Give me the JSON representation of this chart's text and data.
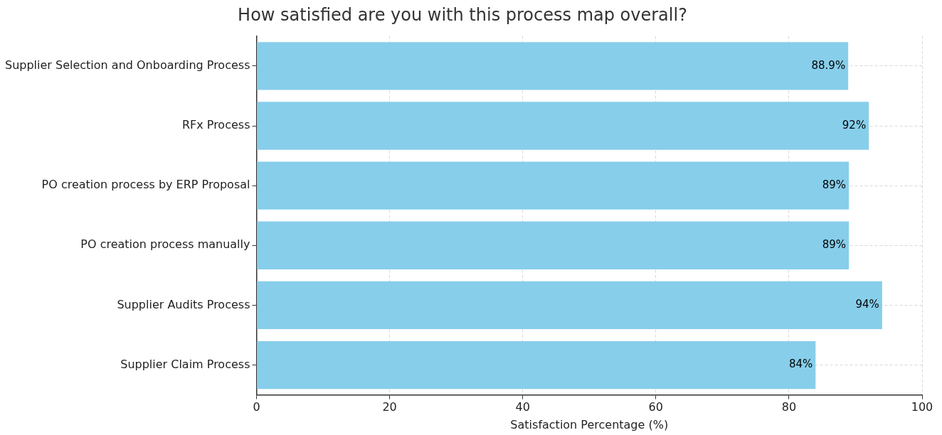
{
  "chart_data": {
    "type": "bar",
    "orientation": "horizontal",
    "title": "How satisfied are you with this process map overall?",
    "xlabel": "Satisfaction Percentage (%)",
    "categories": [
      "Supplier Selection and Onboarding Process",
      "RFx Process",
      "PO creation process by ERP Proposal",
      "PO creation process manually",
      "Supplier Audits Process",
      "Supplier Claim Process"
    ],
    "values": [
      88.9,
      92,
      89,
      89,
      94,
      84
    ],
    "value_labels": [
      "88.9%",
      "92%",
      "89%",
      "89%",
      "94%",
      "84%"
    ],
    "color": "#87ceeb",
    "xlim": [
      0,
      100
    ],
    "xticks": [
      0,
      20,
      40,
      60,
      80,
      100
    ],
    "grid": true
  }
}
